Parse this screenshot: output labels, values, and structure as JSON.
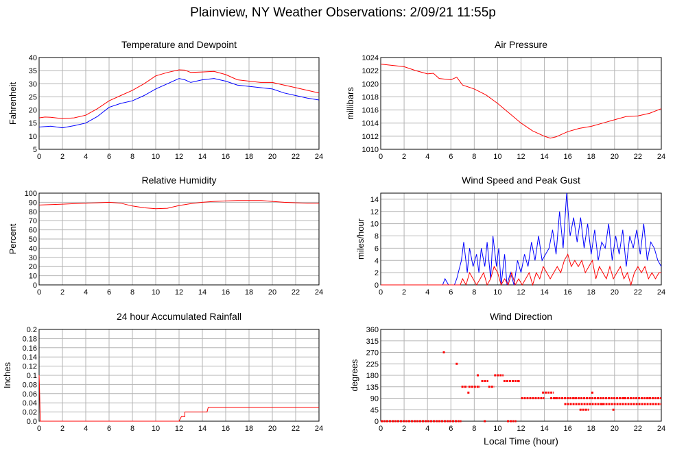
{
  "title": "Plainview, NY Weather Observations: 2/09/21 11:55p",
  "colors": {
    "series_red": "#ff0000",
    "series_blue": "#0000ff",
    "grid": "#b3b3b3",
    "axis": "#000000"
  },
  "chart_data": [
    {
      "id": "temperature",
      "type": "line",
      "title": "Temperature and Dewpoint",
      "xlabel": "",
      "ylabel": "Fahrenheit",
      "xlim": [
        0,
        24
      ],
      "ylim": [
        5,
        40
      ],
      "xticks": [
        0,
        2,
        4,
        6,
        8,
        10,
        12,
        14,
        16,
        18,
        20,
        22,
        24
      ],
      "yticks": [
        5,
        10,
        15,
        20,
        25,
        30,
        35,
        40
      ],
      "series": [
        {
          "color": "#ff0000",
          "x": [
            0,
            0.5,
            1,
            2,
            3,
            4,
            5,
            6,
            7,
            8,
            9,
            10,
            11,
            12,
            12.5,
            13,
            14,
            15,
            16,
            17,
            18,
            19,
            20,
            21,
            22,
            23,
            24
          ],
          "y": [
            17,
            17.3,
            17.2,
            16.7,
            17,
            18,
            20.5,
            23.5,
            25.5,
            27.5,
            30,
            33,
            34.3,
            35.3,
            35.2,
            34.3,
            34.5,
            34.7,
            33.5,
            31.5,
            31,
            30.5,
            30.5,
            29.5,
            28.5,
            27.5,
            26.5
          ]
        },
        {
          "color": "#0000ff",
          "x": [
            0,
            1,
            2,
            3,
            4,
            5,
            6,
            7,
            8,
            9,
            10,
            11,
            12,
            12.5,
            13,
            14,
            15,
            16,
            17,
            18,
            19,
            20,
            21,
            22,
            23,
            24
          ],
          "y": [
            13.5,
            13.8,
            13.2,
            14,
            15,
            17.5,
            21,
            22.5,
            23.5,
            25.5,
            28,
            30,
            32,
            31.5,
            30.5,
            31.5,
            32,
            31,
            29.5,
            29,
            28.5,
            28,
            26.5,
            25.5,
            24.5,
            23.8
          ]
        }
      ]
    },
    {
      "id": "pressure",
      "type": "line",
      "title": "Air Pressure",
      "xlabel": "",
      "ylabel": "millibars",
      "xlim": [
        0,
        24
      ],
      "ylim": [
        1010,
        1024
      ],
      "xticks": [
        0,
        2,
        4,
        6,
        8,
        10,
        12,
        14,
        16,
        18,
        20,
        22,
        24
      ],
      "yticks": [
        1010,
        1012,
        1014,
        1016,
        1018,
        1020,
        1022,
        1024
      ],
      "series": [
        {
          "color": "#ff0000",
          "x": [
            0,
            1,
            2,
            3,
            4,
            4.5,
            5,
            6,
            6.5,
            7,
            8,
            9,
            10,
            11,
            12,
            13,
            14,
            14.5,
            15,
            16,
            17,
            18,
            19,
            20,
            21,
            22,
            23,
            24
          ],
          "y": [
            1023,
            1022.8,
            1022.6,
            1022,
            1021.5,
            1021.6,
            1020.8,
            1020.6,
            1021,
            1019.8,
            1019.2,
            1018.3,
            1017,
            1015.5,
            1014,
            1012.8,
            1012,
            1011.7,
            1011.9,
            1012.7,
            1013.2,
            1013.5,
            1014,
            1014.5,
            1015,
            1015.1,
            1015.5,
            1016.2
          ]
        }
      ]
    },
    {
      "id": "humidity",
      "type": "line",
      "title": "Relative Humidity",
      "xlabel": "",
      "ylabel": "Percent",
      "xlim": [
        0,
        24
      ],
      "ylim": [
        0,
        100
      ],
      "xticks": [
        0,
        2,
        4,
        6,
        8,
        10,
        12,
        14,
        16,
        18,
        20,
        22,
        24
      ],
      "yticks": [
        0,
        10,
        20,
        30,
        40,
        50,
        60,
        70,
        80,
        90,
        100
      ],
      "series": [
        {
          "color": "#ff0000",
          "x": [
            0,
            1,
            2,
            3,
            4,
            5,
            6,
            7,
            8,
            9,
            10,
            11,
            12,
            13,
            14,
            15,
            16,
            17,
            18,
            19,
            20,
            21,
            22,
            23,
            24
          ],
          "y": [
            87,
            87.5,
            88,
            88.5,
            89,
            89.5,
            90,
            89,
            86,
            84,
            83,
            83.5,
            86.5,
            88.5,
            90,
            91,
            91.5,
            92,
            92,
            92,
            91,
            90,
            89.5,
            89,
            89
          ]
        }
      ]
    },
    {
      "id": "wind_speed",
      "type": "line",
      "title": "Wind Speed and Peak Gust",
      "xlabel": "",
      "ylabel": "miles/hour",
      "xlim": [
        0,
        24
      ],
      "ylim": [
        0,
        15
      ],
      "xticks": [
        0,
        2,
        4,
        6,
        8,
        10,
        12,
        14,
        16,
        18,
        20,
        22,
        24
      ],
      "yticks": [
        0,
        2,
        4,
        6,
        8,
        10,
        12,
        14
      ],
      "series": [
        {
          "color": "#0000ff",
          "x": [
            0,
            5.3,
            5.5,
            5.8,
            6.3,
            6.5,
            6.9,
            7.1,
            7.4,
            7.6,
            7.9,
            8.2,
            8.4,
            8.6,
            8.9,
            9.1,
            9.4,
            9.6,
            9.9,
            10.1,
            10.3,
            10.6,
            10.8,
            11.1,
            11.4,
            11.7,
            12.0,
            12.3,
            12.6,
            12.9,
            13.2,
            13.5,
            13.8,
            14.1,
            14.4,
            14.7,
            15.0,
            15.3,
            15.6,
            15.9,
            16.2,
            16.5,
            16.8,
            17.1,
            17.4,
            17.7,
            18.0,
            18.3,
            18.6,
            18.9,
            19.2,
            19.5,
            19.8,
            20.1,
            20.4,
            20.7,
            21.0,
            21.3,
            21.6,
            21.9,
            22.2,
            22.5,
            22.8,
            23.1,
            23.4,
            23.7,
            24
          ],
          "y": [
            0,
            0,
            1,
            0,
            0,
            1,
            4,
            7,
            2,
            6,
            3,
            5,
            2,
            6,
            3,
            7,
            1,
            8,
            3,
            6,
            0,
            5,
            0,
            2,
            0,
            4,
            2,
            5,
            3,
            7,
            4,
            8,
            4,
            5,
            6,
            9,
            5,
            12,
            6,
            15,
            8,
            11,
            7,
            11,
            6,
            10,
            5,
            9,
            4,
            7,
            6,
            10,
            4,
            8,
            5,
            9,
            3,
            8,
            6,
            9,
            5,
            10,
            4,
            7,
            6,
            4,
            3
          ]
        },
        {
          "color": "#ff0000",
          "x": [
            0,
            6.8,
            7.0,
            7.3,
            7.6,
            7.9,
            8.2,
            8.5,
            8.8,
            9.1,
            9.4,
            9.7,
            10.0,
            10.3,
            10.6,
            10.9,
            11.2,
            11.5,
            11.8,
            12.1,
            12.4,
            12.7,
            13.0,
            13.3,
            13.6,
            13.9,
            14.2,
            14.5,
            14.8,
            15.1,
            15.4,
            15.7,
            16.0,
            16.3,
            16.6,
            16.9,
            17.2,
            17.5,
            17.8,
            18.1,
            18.4,
            18.7,
            19.0,
            19.3,
            19.6,
            19.9,
            20.2,
            20.5,
            20.8,
            21.1,
            21.4,
            21.7,
            22.0,
            22.3,
            22.6,
            22.9,
            23.2,
            23.5,
            23.8,
            24
          ],
          "y": [
            0,
            0,
            1,
            0,
            2,
            1,
            0,
            1,
            2,
            0,
            1,
            3,
            2,
            0,
            1,
            0,
            2,
            0,
            1,
            0,
            1,
            2,
            0,
            2,
            1,
            3,
            2,
            1,
            2,
            3,
            2,
            4,
            5,
            3,
            4,
            3,
            4,
            2,
            3,
            4,
            1,
            3,
            2,
            1,
            3,
            1,
            2,
            3,
            1,
            2,
            0,
            2,
            3,
            2,
            3,
            1,
            2,
            1,
            2,
            2
          ]
        }
      ]
    },
    {
      "id": "rainfall",
      "type": "line",
      "title": "24 hour Accumulated Rainfall",
      "xlabel": "",
      "ylabel": "Inches",
      "xlim": [
        0,
        24
      ],
      "ylim": [
        0,
        0.2
      ],
      "xticks": [
        0,
        2,
        4,
        6,
        8,
        10,
        12,
        14,
        16,
        18,
        20,
        22,
        24
      ],
      "yticks": [
        "0.0",
        "0.02",
        "0.04",
        "0.06",
        "0.08",
        "0.1",
        "0.12",
        "0.14",
        "0.16",
        "0.18",
        "0.2"
      ],
      "series": [
        {
          "color": "#ff0000",
          "x": [
            0,
            0.03,
            0.1,
            12,
            12.2,
            12.5,
            12.5,
            14.4,
            14.5,
            24
          ],
          "y": [
            0.1,
            0.08,
            0,
            0,
            0.01,
            0.01,
            0.02,
            0.02,
            0.03,
            0.03
          ]
        }
      ]
    },
    {
      "id": "wind_direction",
      "type": "scatter",
      "title": "Wind Direction",
      "xlabel": "Local Time (hour)",
      "ylabel": "degrees",
      "xlim": [
        0,
        24
      ],
      "ylim": [
        0,
        360
      ],
      "xticks": [
        0,
        2,
        4,
        6,
        8,
        10,
        12,
        14,
        16,
        18,
        20,
        22,
        24
      ],
      "yticks": [
        0,
        45,
        90,
        135,
        180,
        225,
        270,
        315,
        360
      ],
      "series": [
        {
          "color": "#ff0000",
          "segments": [
            {
              "x0": 0,
              "x1": 6.9,
              "y": 0
            },
            {
              "x0": 6.9,
              "x1": 7.4,
              "y": 135
            },
            {
              "x0": 7.5,
              "x1": 8.5,
              "y": 135
            },
            {
              "x0": 8.6,
              "x1": 9.2,
              "y": 157
            },
            {
              "x0": 9.2,
              "x1": 9.7,
              "y": 135
            },
            {
              "x0": 9.7,
              "x1": 10.5,
              "y": 180
            },
            {
              "x0": 10.5,
              "x1": 11.8,
              "y": 157
            },
            {
              "x0": 10.8,
              "x1": 11.6,
              "y": 0
            },
            {
              "x0": 12.0,
              "x1": 14.0,
              "y": 90
            },
            {
              "x0": 13.8,
              "x1": 14.8,
              "y": 112
            },
            {
              "x0": 14.5,
              "x1": 24,
              "y": 90
            },
            {
              "x0": 15.7,
              "x1": 24,
              "y": 67
            },
            {
              "x0": 17.0,
              "x1": 17.8,
              "y": 45
            }
          ],
          "points": [
            [
              5.4,
              270
            ],
            [
              6.5,
              225
            ],
            [
              7.5,
              112
            ],
            [
              8.3,
              180
            ],
            [
              8.9,
              0
            ],
            [
              11.8,
              157
            ],
            [
              15.0,
              90
            ],
            [
              16.5,
              90
            ],
            [
              18.1,
              112
            ],
            [
              18.9,
              67
            ],
            [
              19.9,
              45
            ],
            [
              20.8,
              90
            ],
            [
              23.0,
              90
            ]
          ]
        }
      ]
    }
  ]
}
